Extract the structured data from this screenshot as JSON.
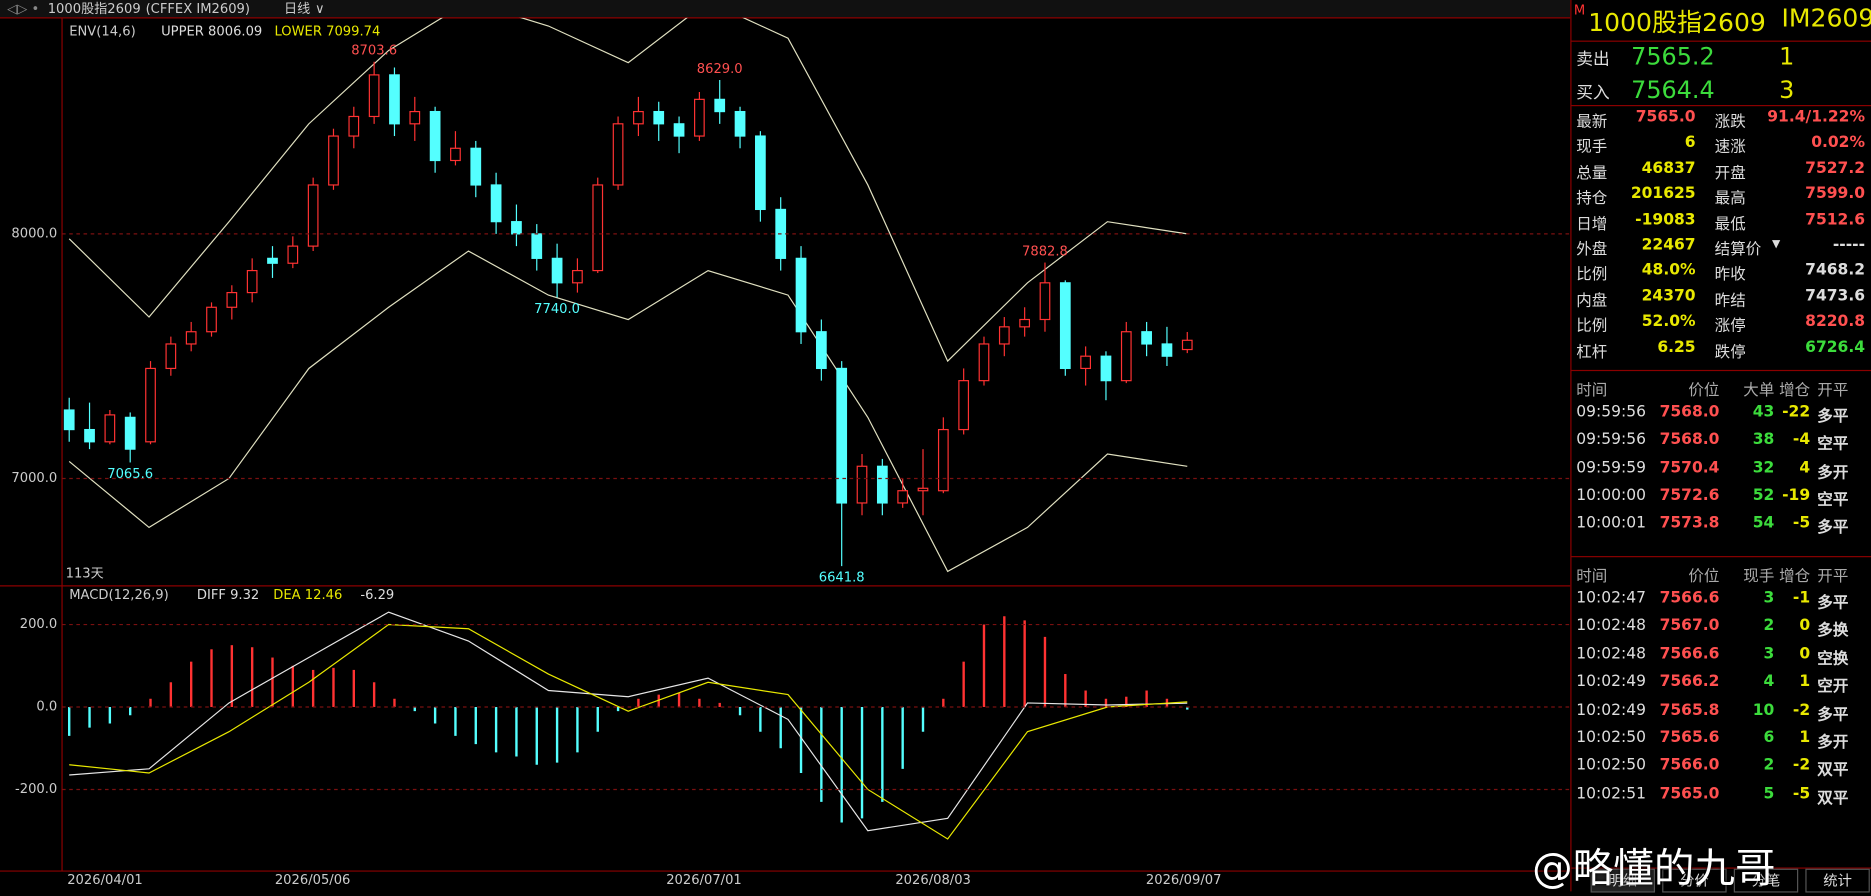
{
  "header": {
    "symbol": "1000股指2609",
    "exchange": "(CFFEX IM2609)",
    "period": "日线"
  },
  "chart_data": [
    {
      "type": "candlestick",
      "indicator": "ENV(14,6)",
      "upper_label": "UPPER 8006.09",
      "lower_label": "LOWER 7099.74",
      "days": "113天",
      "ylim": [
        6561,
        8883
      ],
      "yticks": [
        {
          "value": 8000,
          "label": "8000.0"
        },
        {
          "value": 7000,
          "label": "7000.0"
        }
      ],
      "up_color": "#ff3232",
      "down_color": "#54ffff",
      "candles": [
        [
          7280,
          7330,
          7150,
          7200
        ],
        [
          7200,
          7310,
          7120,
          7150
        ],
        [
          7150,
          7280,
          7140,
          7260
        ],
        [
          7250,
          7270,
          7065.6,
          7120
        ],
        [
          7150,
          7480,
          7140,
          7450
        ],
        [
          7450,
          7580,
          7420,
          7550
        ],
        [
          7550,
          7640,
          7520,
          7600
        ],
        [
          7600,
          7720,
          7580,
          7700
        ],
        [
          7700,
          7790,
          7650,
          7760
        ],
        [
          7760,
          7900,
          7720,
          7850
        ],
        [
          7900,
          7950,
          7820,
          7880
        ],
        [
          7880,
          7990,
          7860,
          7950
        ],
        [
          7950,
          8230,
          7930,
          8200
        ],
        [
          8200,
          8430,
          8180,
          8400
        ],
        [
          8400,
          8520,
          8350,
          8480
        ],
        [
          8480,
          8703.6,
          8450,
          8650
        ],
        [
          8650,
          8680,
          8400,
          8450
        ],
        [
          8450,
          8560,
          8380,
          8500
        ],
        [
          8500,
          8520,
          8250,
          8300
        ],
        [
          8300,
          8420,
          8280,
          8350
        ],
        [
          8350,
          8380,
          8150,
          8200
        ],
        [
          8200,
          8250,
          8000,
          8050
        ],
        [
          8050,
          8120,
          7950,
          8000
        ],
        [
          8000,
          8040,
          7850,
          7900
        ],
        [
          7900,
          7960,
          7740,
          7800
        ],
        [
          7800,
          7900,
          7760,
          7850
        ],
        [
          7850,
          8230,
          7840,
          8200
        ],
        [
          8200,
          8480,
          8180,
          8450
        ],
        [
          8450,
          8560,
          8400,
          8500
        ],
        [
          8500,
          8540,
          8380,
          8450
        ],
        [
          8450,
          8480,
          8330,
          8400
        ],
        [
          8400,
          8580,
          8380,
          8550
        ],
        [
          8550,
          8629,
          8450,
          8500
        ],
        [
          8500,
          8520,
          8350,
          8400
        ],
        [
          8400,
          8420,
          8050,
          8100
        ],
        [
          8100,
          8150,
          7850,
          7900
        ],
        [
          7900,
          7950,
          7550,
          7600
        ],
        [
          7600,
          7650,
          7400,
          7450
        ],
        [
          7450,
          7480,
          6641.8,
          6900
        ],
        [
          6900,
          7100,
          6850,
          7050
        ],
        [
          7050,
          7080,
          6850,
          6900
        ],
        [
          6900,
          7000,
          6880,
          6950
        ],
        [
          6950,
          7120,
          6850,
          6960
        ],
        [
          6950,
          7250,
          6940,
          7200
        ],
        [
          7200,
          7450,
          7180,
          7400
        ],
        [
          7400,
          7580,
          7380,
          7550
        ],
        [
          7550,
          7660,
          7500,
          7620
        ],
        [
          7620,
          7700,
          7580,
          7650
        ],
        [
          7650,
          7882.8,
          7600,
          7800
        ],
        [
          7800,
          7810,
          7420,
          7450
        ],
        [
          7450,
          7540,
          7380,
          7500
        ],
        [
          7500,
          7520,
          7320,
          7400
        ],
        [
          7400,
          7640,
          7390,
          7600
        ],
        [
          7600,
          7640,
          7500,
          7550
        ],
        [
          7550,
          7620,
          7460,
          7500
        ],
        [
          7527.2,
          7599,
          7512.6,
          7565
        ]
      ],
      "envelope_upper": [
        7980,
        7660,
        8050,
        8450,
        8750,
        8950,
        8850,
        8700,
        8950,
        8800,
        8200,
        7480,
        7800,
        8050,
        8000
      ],
      "envelope_lower": [
        7070,
        6800,
        7000,
        7450,
        7700,
        7930,
        7750,
        7650,
        7850,
        7750,
        7250,
        6620,
        6800,
        7100,
        7050
      ],
      "annotations": [
        "8703.6",
        "8629.0",
        "7882.8",
        "7740.0",
        "7065.6",
        "6641.8"
      ],
      "x_labels": [
        "2026/04/01",
        "2026/05/06",
        "2026/07/01",
        "2026/08/03",
        "2026/09/07"
      ]
    },
    {
      "type": "macd",
      "indicator": "MACD(12,26,9)",
      "diff_label": "DIFF 9.32",
      "dea_label": "DEA 12.46",
      "macd_label": "-6.29",
      "ylim": [
        -395,
        288
      ],
      "yticks": [
        {
          "value": 200,
          "label": "200.0"
        },
        {
          "value": 0,
          "label": "0.0"
        },
        {
          "value": -200,
          "label": "-200.0"
        }
      ],
      "diff": [
        -165,
        -150,
        10,
        120,
        230,
        160,
        40,
        25,
        70,
        -30,
        -300,
        -270,
        10,
        5,
        9.32
      ],
      "dea": [
        -140,
        -160,
        -60,
        60,
        200,
        190,
        80,
        -10,
        60,
        30,
        -200,
        -320,
        -60,
        0,
        12.46
      ],
      "histogram": [
        -70,
        -50,
        -40,
        -20,
        20,
        60,
        110,
        140,
        150,
        145,
        120,
        100,
        90,
        95,
        90,
        60,
        20,
        -10,
        -40,
        -70,
        -90,
        -110,
        -120,
        -140,
        -135,
        -110,
        -60,
        -10,
        20,
        30,
        35,
        20,
        10,
        -20,
        -60,
        -100,
        -160,
        -230,
        -280,
        -270,
        -230,
        -150,
        -60,
        20,
        110,
        200,
        220,
        210,
        170,
        80,
        40,
        20,
        25,
        40,
        20,
        -6.29
      ]
    }
  ],
  "quote": {
    "mark": "M",
    "name": "1000股指2609",
    "code": "IM2609",
    "ask": [
      "卖出",
      "7565.2",
      "1"
    ],
    "bid": [
      "买入",
      "7564.4",
      "3"
    ],
    "stats": [
      [
        "最新",
        "7565.0",
        "涨跌",
        "91.4/1.22%"
      ],
      [
        "现手",
        "6",
        "速涨",
        "0.02%"
      ],
      [
        "总量",
        "46837",
        "开盘",
        "7527.2"
      ],
      [
        "持仓",
        "201625",
        "最高",
        "7599.0"
      ],
      [
        "日增",
        "-19083",
        "最低",
        "7512.6"
      ],
      [
        "外盘",
        "22467",
        "结算价",
        "-----"
      ],
      [
        "比例",
        "48.0%",
        "昨收",
        "7468.2"
      ],
      [
        "内盘",
        "24370",
        "昨结",
        "7473.6"
      ],
      [
        "比例",
        "52.0%",
        "涨停",
        "8220.8"
      ],
      [
        "杠杆",
        "6.25",
        "跌停",
        "6726.4"
      ]
    ]
  },
  "trades1": {
    "headers": [
      "时间",
      "价位",
      "大单",
      "增仓",
      "开平"
    ],
    "rows": [
      [
        "09:59:56",
        "7568.0",
        "43",
        "-22",
        "多平"
      ],
      [
        "09:59:56",
        "7568.0",
        "38",
        "-4",
        "空平"
      ],
      [
        "09:59:59",
        "7570.4",
        "32",
        "4",
        "多开"
      ],
      [
        "10:00:00",
        "7572.6",
        "52",
        "-19",
        "空平"
      ],
      [
        "10:00:01",
        "7573.8",
        "54",
        "-5",
        "多平"
      ]
    ]
  },
  "trades2": {
    "headers": [
      "时间",
      "价位",
      "现手",
      "增仓",
      "开平"
    ],
    "rows": [
      [
        "10:02:47",
        "7566.6",
        "3",
        "-1",
        "多平"
      ],
      [
        "10:02:48",
        "7567.0",
        "2",
        "0",
        "多换"
      ],
      [
        "10:02:48",
        "7566.6",
        "3",
        "0",
        "空换"
      ],
      [
        "10:02:49",
        "7566.2",
        "4",
        "1",
        "空开"
      ],
      [
        "10:02:49",
        "7565.8",
        "10",
        "-2",
        "多平"
      ],
      [
        "10:02:50",
        "7565.6",
        "6",
        "1",
        "多开"
      ],
      [
        "10:02:50",
        "7566.0",
        "2",
        "-2",
        "双平"
      ],
      [
        "10:02:51",
        "7565.0",
        "5",
        "-5",
        "双平"
      ]
    ]
  },
  "tabs": [
    "明细",
    "分价",
    "分笔",
    "统计"
  ],
  "watermark": "@略懂的九哥"
}
